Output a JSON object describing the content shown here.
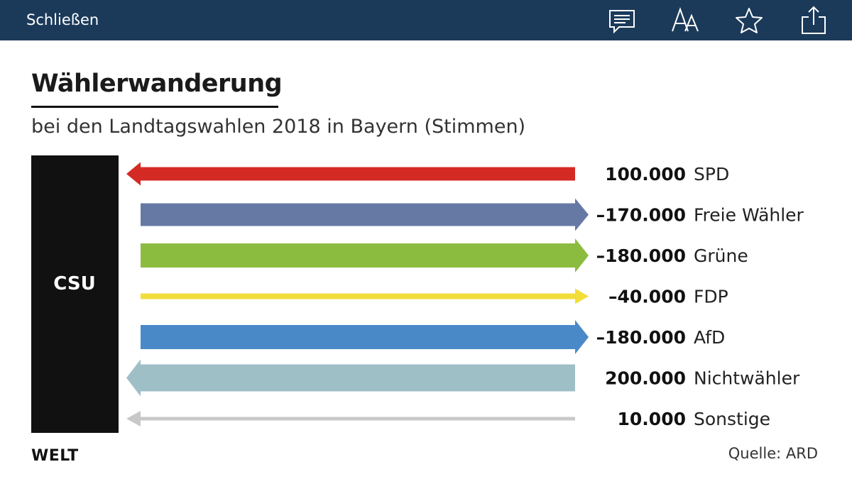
{
  "toolbar": {
    "close_label": "Schließen",
    "icons": [
      "comment-icon",
      "text-size-icon",
      "star-icon",
      "share-icon"
    ]
  },
  "colors": {
    "toolbar_bg": "#1b3a5a",
    "csu_block": "#111111"
  },
  "footer": {
    "logo": "WELT",
    "source": "Quelle: ARD"
  },
  "chart_data": {
    "type": "bar",
    "title": "Wählerwanderung",
    "subtitle": "bei den Landtagswahlen 2018 in Bayern (Stimmen)",
    "origin_label": "CSU",
    "categories": [
      "SPD",
      "Freie Wähler",
      "Grüne",
      "FDP",
      "AfD",
      "Nichtwähler",
      "Sonstige"
    ],
    "value_labels": [
      "100.000",
      "–170.000",
      "–180.000",
      "–40.000",
      "–180.000",
      "200.000",
      "10.000"
    ],
    "values": [
      100000,
      -170000,
      -180000,
      -40000,
      -180000,
      200000,
      10000
    ],
    "colors": [
      "#d42a24",
      "#6679a5",
      "#8cbc3f",
      "#f2de3a",
      "#4a89c8",
      "#9fbfc7",
      "#c8c8c8"
    ]
  }
}
